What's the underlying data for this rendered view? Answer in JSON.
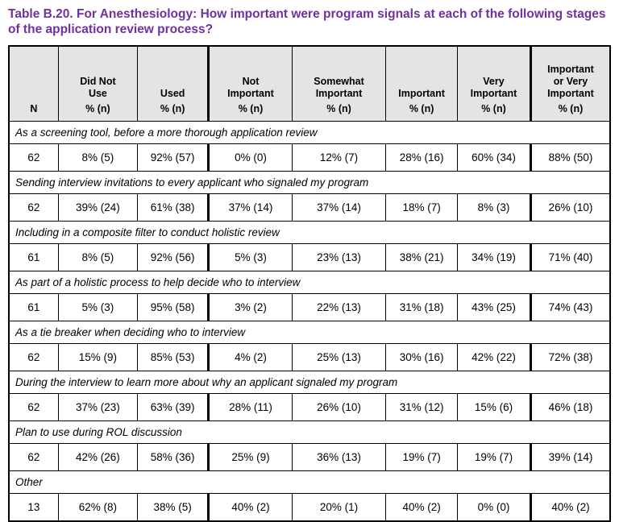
{
  "page": {
    "title": "Table B.20. For Anesthesiology: How important were program signals at each of the following stages of the application review process?"
  },
  "colors": {
    "title_text": "#7030A0",
    "header_bg": "#E4E4E4",
    "border": "#000000"
  },
  "table": {
    "columns": [
      {
        "id": "n",
        "label": "N",
        "format": ""
      },
      {
        "id": "did-not-use",
        "label": "Did Not Use",
        "format": "% (n)"
      },
      {
        "id": "used",
        "label": "Used",
        "format": "% (n)"
      },
      {
        "id": "not-important",
        "label": "Not Important",
        "format": "% (n)"
      },
      {
        "id": "somewhat-important",
        "label": "Somewhat Important",
        "format": "% (n)"
      },
      {
        "id": "important",
        "label": "Important",
        "format": "% (n)"
      },
      {
        "id": "very-important",
        "label": "Very Important",
        "format": "% (n)"
      },
      {
        "id": "important-or-very-important",
        "label": "Important or Very Important",
        "format": "% (n)"
      }
    ],
    "thick_divider_before_columns": [
      3,
      7
    ],
    "rows": [
      {
        "stage": "As a screening tool, before a more thorough application review",
        "values": [
          "62",
          "8% (5)",
          "92% (57)",
          "0% (0)",
          "12% (7)",
          "28% (16)",
          "60% (34)",
          "88% (50)"
        ]
      },
      {
        "stage": "Sending interview invitations to every applicant who signaled my program",
        "values": [
          "62",
          "39% (24)",
          "61% (38)",
          "37% (14)",
          "37% (14)",
          "18% (7)",
          "8% (3)",
          "26% (10)"
        ]
      },
      {
        "stage": "Including in a composite filter to conduct holistic review",
        "values": [
          "61",
          "8% (5)",
          "92% (56)",
          "5% (3)",
          "23% (13)",
          "38% (21)",
          "34% (19)",
          "71% (40)"
        ]
      },
      {
        "stage": "As part of a holistic process to help decide who to interview",
        "values": [
          "61",
          "5% (3)",
          "95% (58)",
          "3% (2)",
          "22% (13)",
          "31% (18)",
          "43% (25)",
          "74% (43)"
        ]
      },
      {
        "stage": "As a tie breaker when deciding who to interview",
        "values": [
          "62",
          "15% (9)",
          "85% (53)",
          "4% (2)",
          "25% (13)",
          "30% (16)",
          "42% (22)",
          "72% (38)"
        ]
      },
      {
        "stage": "During the interview to learn more about why an applicant signaled my program",
        "values": [
          "62",
          "37% (23)",
          "63% (39)",
          "28% (11)",
          "26% (10)",
          "31% (12)",
          "15% (6)",
          "46% (18)"
        ]
      },
      {
        "stage": "Plan to use during ROL discussion",
        "values": [
          "62",
          "42% (26)",
          "58% (36)",
          "25% (9)",
          "36% (13)",
          "19% (7)",
          "19% (7)",
          "39% (14)"
        ]
      },
      {
        "stage": "Other",
        "values": [
          "13",
          "62% (8)",
          "38% (5)",
          "40% (2)",
          "20% (1)",
          "40% (2)",
          "0% (0)",
          "40% (2)"
        ]
      }
    ]
  }
}
